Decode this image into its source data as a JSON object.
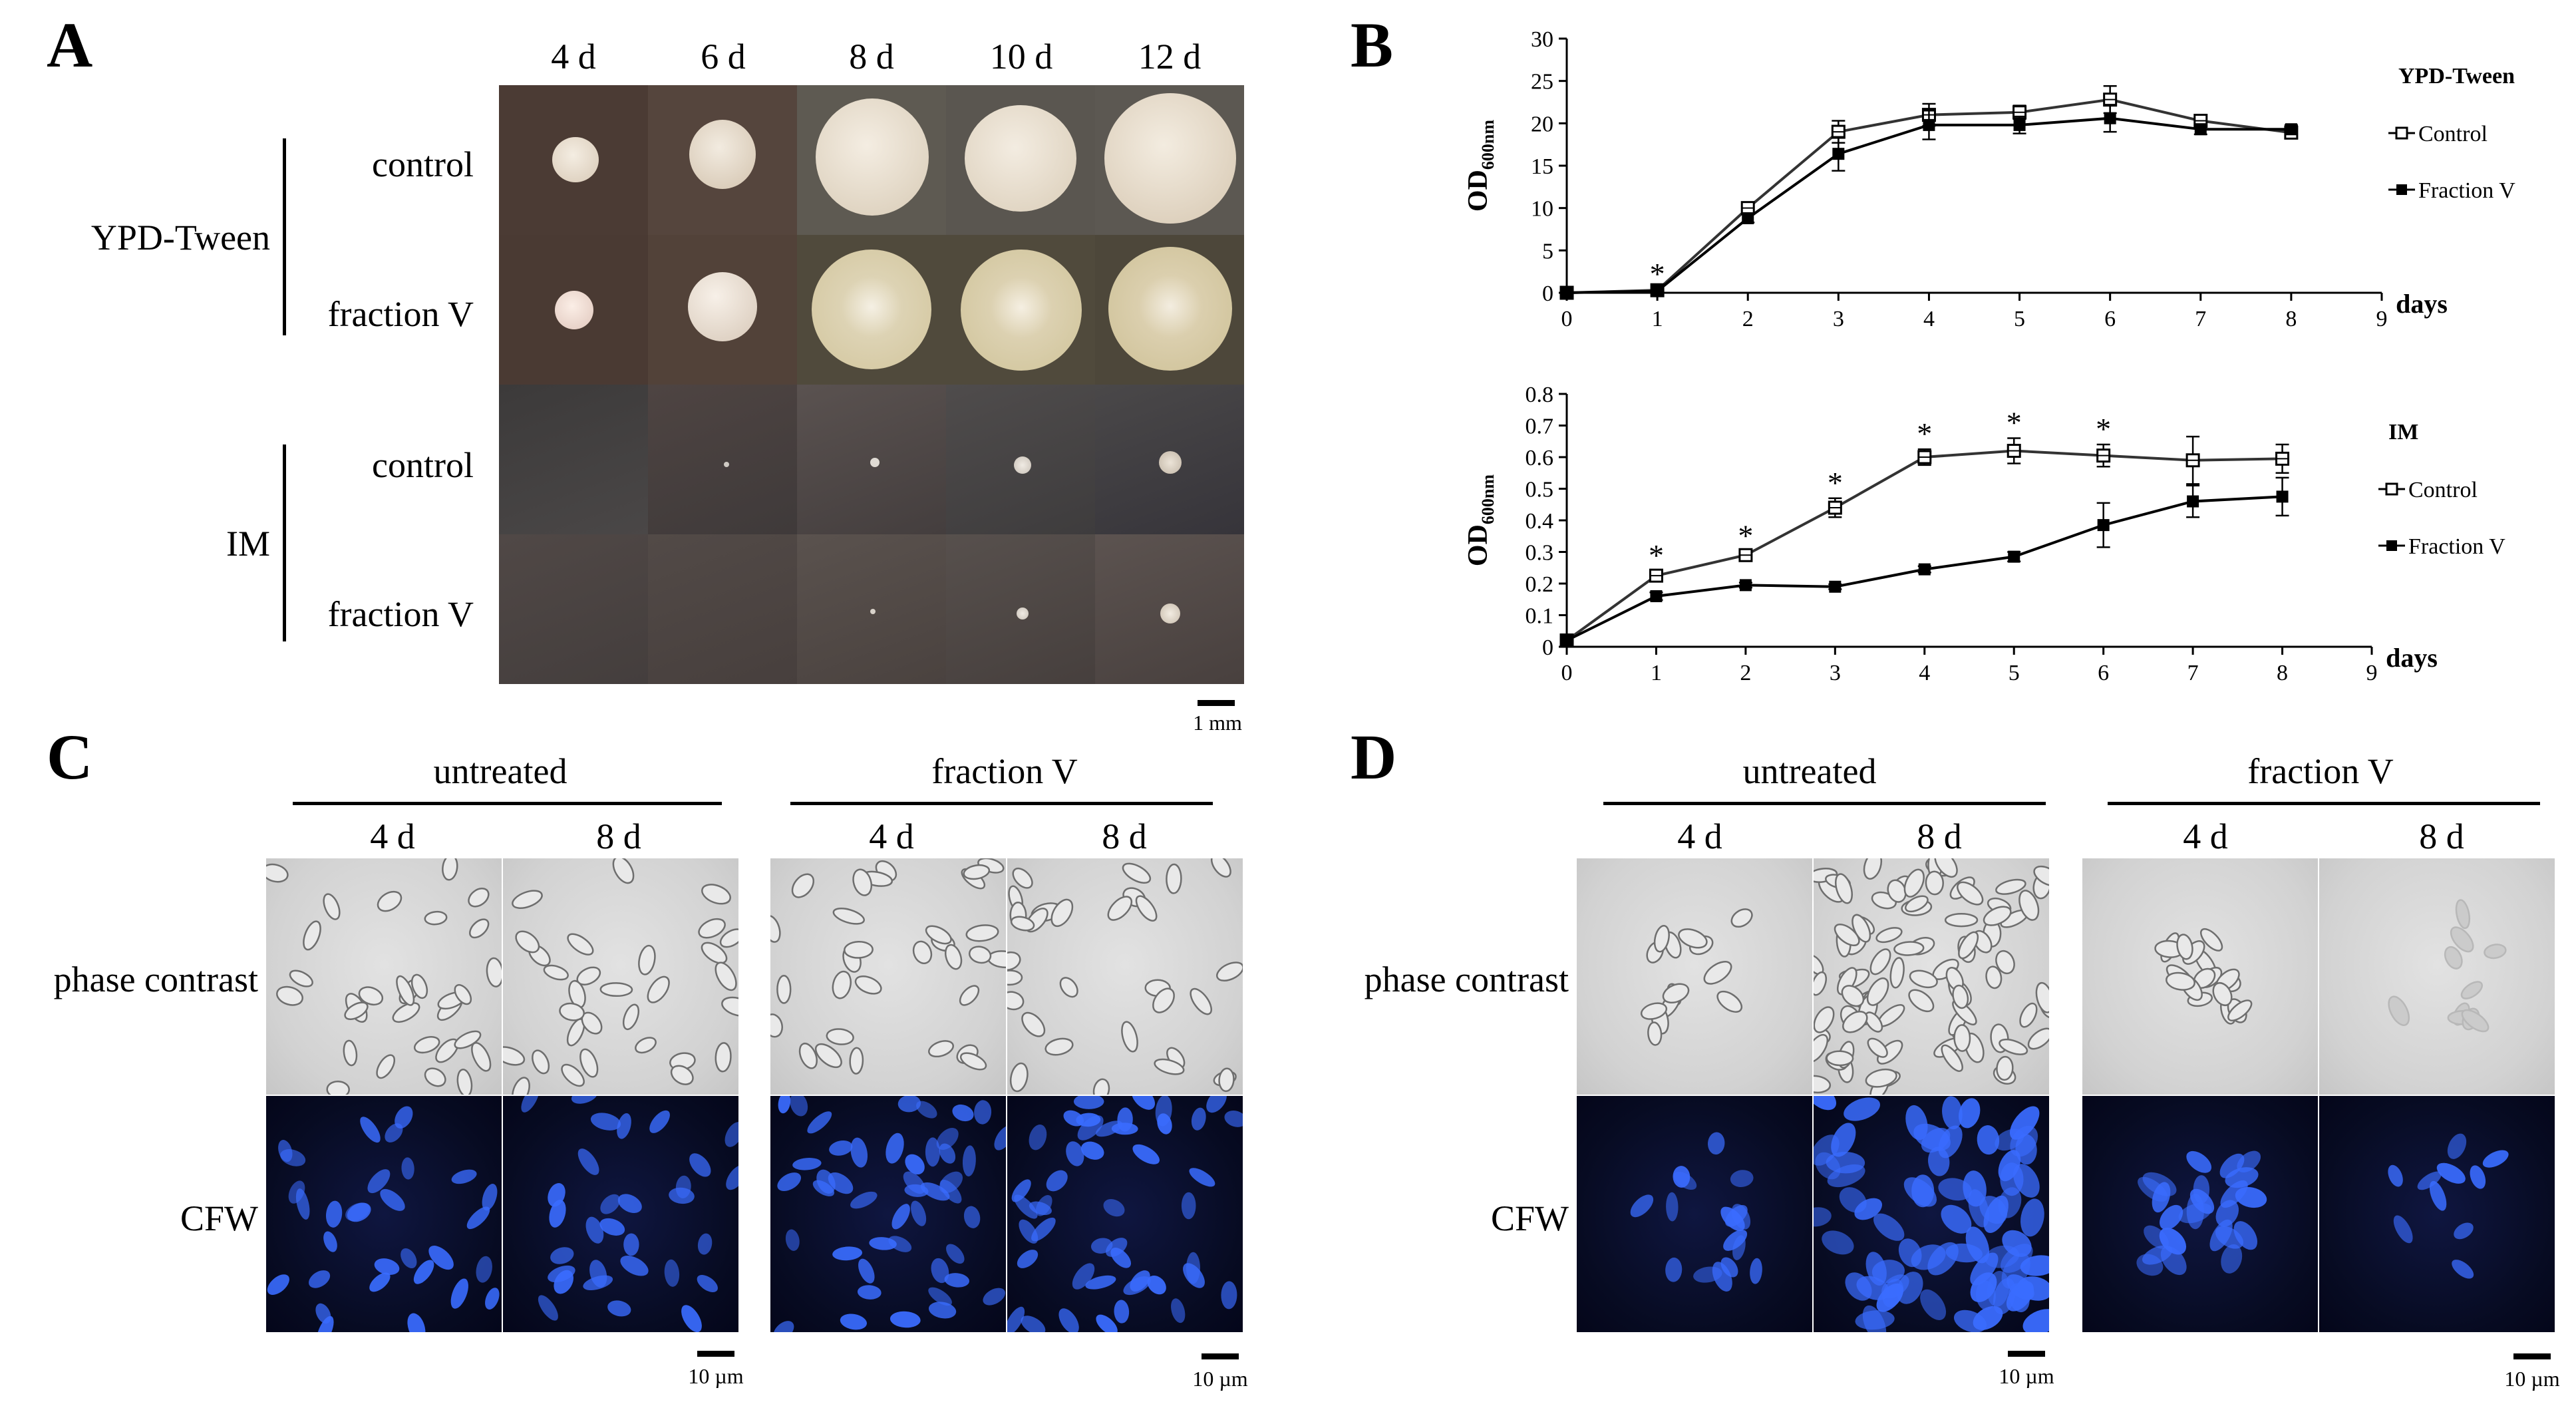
{
  "panel_a": {
    "letter": "A",
    "columns": [
      "4 d",
      "6 d",
      "8 d",
      "10 d",
      "12 d"
    ],
    "groups": [
      {
        "name": "YPD-Tween",
        "rows": [
          "control",
          "fraction V"
        ]
      },
      {
        "name": "IM",
        "rows": [
          "control",
          "fraction V"
        ]
      }
    ],
    "scale": "1 mm"
  },
  "panel_b": {
    "letter": "B",
    "chart_data": [
      {
        "type": "line",
        "title": "",
        "legend_title": "YPD-Tween",
        "xlabel": "days",
        "ylabel": "OD",
        "ylabel_sub": "600nm",
        "x": [
          0,
          1,
          2,
          3,
          4,
          5,
          6,
          7,
          8
        ],
        "xlim": [
          0,
          9
        ],
        "ylim": [
          0,
          30
        ],
        "xticks": [
          "0",
          "1",
          "2",
          "3",
          "4",
          "5",
          "6",
          "7",
          "8",
          "9"
        ],
        "yticks": [
          "0",
          "5",
          "10",
          "15",
          "20",
          "25",
          "30"
        ],
        "series": [
          {
            "name": "Control",
            "marker": "open-square",
            "values": [
              0,
              0.3,
              10,
              19,
              21,
              21.3,
              22.8,
              20.3,
              18.9
            ],
            "err": [
              0,
              0.1,
              0.5,
              1.3,
              1.3,
              0.8,
              1.6,
              0.7,
              0.6
            ]
          },
          {
            "name": "Fraction V",
            "marker": "filled-square",
            "values": [
              0,
              0.2,
              8.8,
              16.4,
              19.8,
              19.8,
              20.6,
              19.3,
              19.3
            ],
            "err": [
              0,
              0.1,
              0.5,
              2.0,
              1.7,
              1.0,
              1.6,
              0.6,
              0.5
            ]
          }
        ],
        "annotations": [
          {
            "x": 1,
            "text": "*"
          }
        ]
      },
      {
        "type": "line",
        "title": "",
        "legend_title": "IM",
        "xlabel": "days",
        "ylabel": "OD",
        "ylabel_sub": "600nm",
        "x": [
          0,
          1,
          2,
          3,
          4,
          5,
          6,
          7,
          8
        ],
        "xlim": [
          0,
          9
        ],
        "ylim": [
          0,
          0.8
        ],
        "xticks": [
          "0",
          "1",
          "2",
          "3",
          "4",
          "5",
          "6",
          "7",
          "8",
          "9"
        ],
        "yticks": [
          "0",
          "0.1",
          "0.2",
          "0.3",
          "0.4",
          "0.5",
          "0.6",
          "0.7",
          "0.8"
        ],
        "series": [
          {
            "name": "Control",
            "marker": "open-square",
            "values": [
              0.02,
              0.225,
              0.29,
              0.44,
              0.6,
              0.62,
              0.605,
              0.59,
              0.595
            ],
            "err": [
              0,
              0.015,
              0.012,
              0.03,
              0.025,
              0.04,
              0.035,
              0.075,
              0.045
            ]
          },
          {
            "name": "Fraction V",
            "marker": "filled-square",
            "values": [
              0.02,
              0.16,
              0.195,
              0.19,
              0.245,
              0.285,
              0.385,
              0.46,
              0.475
            ],
            "err": [
              0,
              0.012,
              0.008,
              0.008,
              0.01,
              0.015,
              0.07,
              0.05,
              0.06
            ]
          }
        ],
        "annotations": [
          {
            "x": 1,
            "text": "*"
          },
          {
            "x": 2,
            "text": "*"
          },
          {
            "x": 3,
            "text": "*"
          },
          {
            "x": 4,
            "text": "*"
          },
          {
            "x": 5,
            "text": "*"
          },
          {
            "x": 6,
            "text": "*"
          }
        ]
      }
    ]
  },
  "panel_c": {
    "letter": "C",
    "groups": [
      {
        "name": "untreated",
        "columns": [
          "4 d",
          "8 d"
        ]
      },
      {
        "name": "fraction V",
        "columns": [
          "4 d",
          "8 d"
        ]
      }
    ],
    "rows": [
      "phase contrast",
      "CFW"
    ],
    "scale": "10 µm"
  },
  "panel_d": {
    "letter": "D",
    "groups": [
      {
        "name": "untreated",
        "columns": [
          "4 d",
          "8 d"
        ]
      },
      {
        "name": "fraction V",
        "columns": [
          "4 d",
          "8 d"
        ]
      }
    ],
    "rows": [
      "phase contrast",
      "CFW"
    ],
    "scale": "10 µm"
  },
  "colors": {
    "plate_ypd": "#5a4a40",
    "plate_im": "#4e4a48",
    "colony_ypd": "#e6dccb",
    "colony_fraction": "#d9cda6",
    "cfw_stain": "#3a6cff",
    "phase_bg": "#d4d4d4"
  }
}
